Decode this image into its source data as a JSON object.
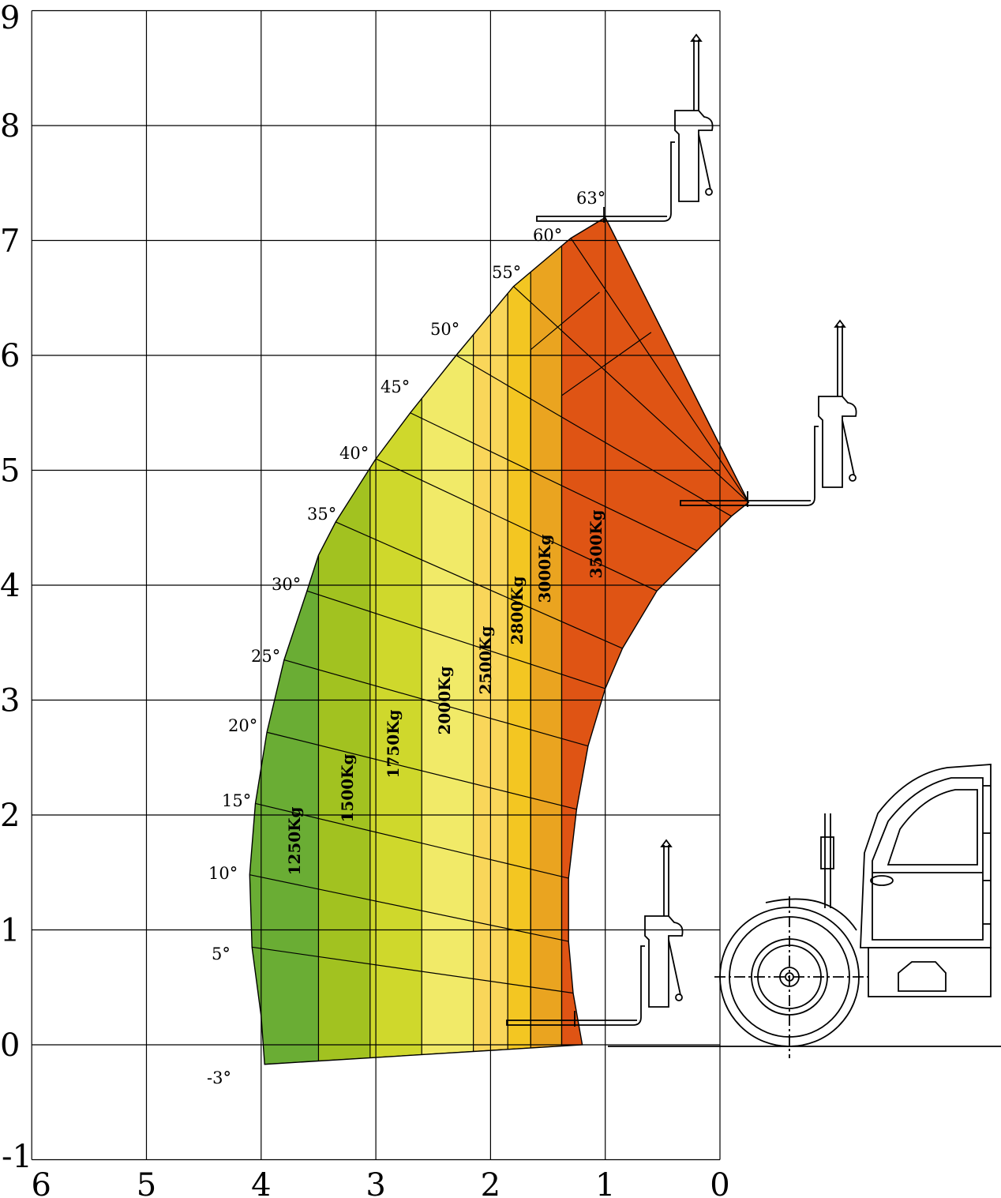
{
  "chart_data": {
    "type": "area",
    "title": "",
    "xlabel": "",
    "ylabel": "",
    "xlim": [
      0,
      6
    ],
    "ylim": [
      -1,
      9
    ],
    "x_reversed": true,
    "grid": true,
    "x_ticks": [
      "6",
      "5",
      "4",
      "3",
      "2",
      "1",
      "0"
    ],
    "y_ticks": [
      "9",
      "8",
      "7",
      "6",
      "5",
      "4",
      "3",
      "2",
      "1",
      "0",
      "-1"
    ],
    "outer_envelope": [
      [
        1.0,
        7.2
      ],
      [
        1.3,
        7.02
      ],
      [
        1.8,
        6.6
      ],
      [
        2.3,
        6.0
      ],
      [
        2.7,
        5.5
      ],
      [
        3.0,
        5.1
      ],
      [
        3.35,
        4.55
      ],
      [
        3.5,
        4.26
      ],
      [
        3.6,
        3.95
      ],
      [
        3.8,
        3.35
      ],
      [
        3.95,
        2.72
      ],
      [
        4.05,
        2.1
      ],
      [
        4.1,
        1.48
      ],
      [
        4.08,
        0.85
      ],
      [
        4.0,
        0.25
      ],
      [
        3.97,
        -0.17
      ]
    ],
    "inner_envelope": [
      [
        -0.25,
        4.72
      ],
      [
        -0.1,
        4.6
      ],
      [
        0.2,
        4.3
      ],
      [
        0.55,
        3.95
      ],
      [
        0.85,
        3.45
      ],
      [
        1.0,
        3.1
      ],
      [
        1.15,
        2.6
      ],
      [
        1.25,
        2.05
      ],
      [
        1.32,
        1.45
      ],
      [
        1.32,
        0.9
      ],
      [
        1.28,
        0.45
      ],
      [
        1.2,
        0.0
      ]
    ],
    "load_zones": [
      {
        "label": "1250Kg",
        "x_from": 4.1,
        "x_to": 3.5,
        "color": "#6aad34"
      },
      {
        "label": "1500Kg",
        "x_from": 3.5,
        "x_to": 3.05,
        "color": "#a2c220"
      },
      {
        "label": "1750Kg",
        "x_from": 3.05,
        "x_to": 2.6,
        "color": "#cfd82c"
      },
      {
        "label": "2000Kg",
        "x_from": 2.6,
        "x_to": 2.15,
        "color": "#f1ea68"
      },
      {
        "label": "2500Kg",
        "x_from": 2.15,
        "x_to": 1.85,
        "color": "#f9d65a"
      },
      {
        "label": "2800Kg",
        "x_from": 1.85,
        "x_to": 1.65,
        "color": "#f3c622"
      },
      {
        "label": "3000Kg",
        "x_from": 1.65,
        "x_to": 1.38,
        "color": "#eaa420"
      },
      {
        "label": "3500Kg",
        "x_from": 1.38,
        "x_to": -0.3,
        "color": "#df5414"
      }
    ],
    "boom_angles": [
      "-3°",
      "5°",
      "10°",
      "15°",
      "20°",
      "25°",
      "30°",
      "35°",
      "40°",
      "45°",
      "50°",
      "55°",
      "60°",
      "63°"
    ]
  }
}
